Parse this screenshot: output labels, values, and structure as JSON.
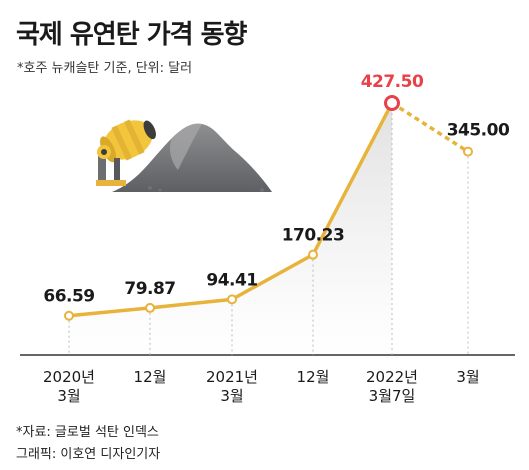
{
  "header": {
    "title": "국제 유연탄 가격 동향",
    "subtitle": "*호주 뉴캐슬탄 기준, 단위: 달러"
  },
  "footer": {
    "source": "*자료: 글로벌 석탄 인덱스",
    "credit": "그래픽: 이호연 디자인기자"
  },
  "chart_data": {
    "type": "line",
    "title": "국제 유연탄 가격 동향",
    "ylabel": "",
    "xlabel": "",
    "categories": [
      [
        "2020년",
        "3월"
      ],
      [
        "12월"
      ],
      [
        "2021년",
        "3월"
      ],
      [
        "12월"
      ],
      [
        "2022년",
        "3월7일"
      ],
      [
        "3월"
      ]
    ],
    "series": [
      {
        "values": [
          66.59,
          79.87,
          94.41,
          170.23,
          427.5,
          345.0
        ],
        "labels": [
          "66.59",
          "79.87",
          "94.41",
          "170.23",
          "427.50",
          "345.00"
        ]
      }
    ],
    "highlight_index": 4,
    "dashed_last_segment": true,
    "ylim": [
      0,
      450
    ],
    "grid": false,
    "colors": {
      "line": "#E8B33A",
      "highlight_marker": "#E8414A",
      "highlight_label": "#E8414A",
      "area_top": "#DDDDDD",
      "area_bottom": "#FFFFFF",
      "guide": "#BBBBBB"
    },
    "illustration": "coal-pile-and-cement-mixer"
  }
}
